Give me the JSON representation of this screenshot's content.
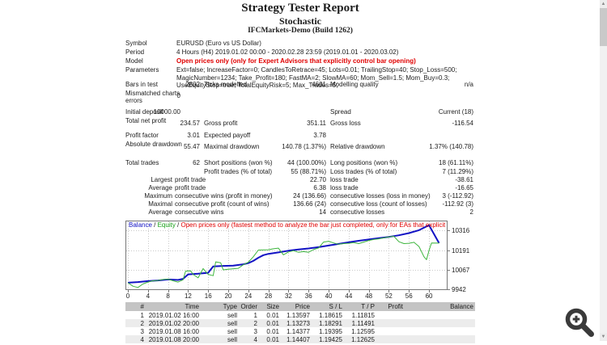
{
  "report": {
    "title": "Strategy Tester Report",
    "subtitle": "Stochastic",
    "server": "IFCMarkets-Demo (Build 1262)"
  },
  "summary": {
    "rows": [
      {
        "type": "wide",
        "label": "Symbol",
        "value": "EURUSD (Euro vs US Dollar)"
      },
      {
        "type": "wide",
        "label": "Period",
        "value": "4 Hours (H4) 2019.01.02 00:00 - 2020.02.28 23:59 (2019.01.01 - 2020.03.02)"
      },
      {
        "type": "wide",
        "label": "Model",
        "value": "Open prices only (only for Expert Advisors that explicitly control bar opening)",
        "emphasis": "red"
      },
      {
        "type": "wide",
        "label": "Parameters",
        "value": "Ext=false; IncreaseFactor=0; CandlesToRetrace=45; Lots=0.01; TrailingStop=40; Stop_Loss=500; MagicNumber=1234; Take_Profit=180; FastMA=2; SlowMA=60; Mom_Sell=1.5; Mom_Buy=0.3; UseEquityStop=true; TotalEquityRisk=5; Max_Trades=5;",
        "tall": true
      },
      {
        "type": "cols",
        "l1": "Bars in test",
        "v1": "2802",
        "l2": "Ticks modelled",
        "v2": "4601",
        "l3": "Modelling quality",
        "v3": "n/a"
      },
      {
        "type": "cols",
        "l1": "Mismatched charts errors",
        "v1s": "0",
        "tall": true
      },
      {
        "type": "cols",
        "gap": true,
        "l1": "Initial deposit",
        "v1s": "10000.00",
        "l3": "Spread",
        "v3": "Current (18)"
      },
      {
        "type": "cols",
        "l1": "Total net profit",
        "v1": "234.57",
        "l2": "Gross profit",
        "v2": "351.11",
        "l3": "Gross loss",
        "v3": "-116.54",
        "tall": true
      },
      {
        "type": "cols",
        "l1": "Profit factor",
        "v1": "3.01",
        "l2": "Expected payoff",
        "v2": "3.78"
      },
      {
        "type": "cols",
        "l1": "Absolute drawdown",
        "v1": "55.47",
        "l2": "Maximal drawdown",
        "v2": "140.78 (1.37%)",
        "l3": "Relative drawdown",
        "v3": "1.37% (140.78)",
        "tall": true
      },
      {
        "type": "cols",
        "gap": true,
        "l1": "Total trades",
        "v1": "62",
        "l2": "Short positions (won %)",
        "v2": "44 (100.00%)",
        "l3": "Long positions (won %)",
        "v3": "18 (61.11%)"
      },
      {
        "type": "cols",
        "l2": "Profit trades (% of total)",
        "v2": "55 (88.71%)",
        "l3": "Loss trades (% of total)",
        "v3": "7 (11.29%)"
      },
      {
        "type": "indent",
        "a": "Largest",
        "b": "profit trade",
        "v2": "22.70",
        "l3": "loss trade",
        "v3": "-38.61"
      },
      {
        "type": "indent",
        "a": "Average",
        "b": "profit trade",
        "v2": "6.38",
        "l3": "loss trade",
        "v3": "-16.65"
      },
      {
        "type": "indent",
        "a": "Maximum",
        "b": "consecutive wins (profit in money)",
        "v2": "24 (136.66)",
        "l3": "consecutive losses (loss in money)",
        "v3": "3 (-112.92)"
      },
      {
        "type": "indent",
        "a": "Maximal",
        "b": "consecutive profit (count of wins)",
        "v2": "136.66 (24)",
        "l3": "consecutive loss (count of losses)",
        "v3": "-112.92 (3)"
      },
      {
        "type": "indent",
        "a": "Average",
        "b": "consecutive wins",
        "v2": "14",
        "l3": "consecutive losses",
        "v3": "2"
      }
    ]
  },
  "chart_data": {
    "type": "line",
    "title": "",
    "legend": [
      {
        "label": "Balance",
        "color": "#1212c4"
      },
      {
        "label": "Equity",
        "color": "#17a017"
      },
      {
        "label": "Open prices only (fastest method to analyze the bar just completed, only for EAs that explicitly control bar opening)",
        "color": "#e00000"
      }
    ],
    "legend_separator": " / ",
    "x_ticks": [
      0,
      4,
      8,
      12,
      16,
      20,
      24,
      28,
      32,
      36,
      40,
      44,
      48,
      52,
      56,
      60
    ],
    "y_ticks": [
      10316,
      10191,
      10067,
      9942
    ],
    "x_max": 63.7,
    "y_top": 10376,
    "y_bottom": 9942,
    "grid": true,
    "series": [
      {
        "name": "Balance",
        "color": "#1212c4",
        "width": 2,
        "points": [
          [
            0,
            9988
          ],
          [
            2,
            9992
          ],
          [
            4,
            9998
          ],
          [
            6,
            10002
          ],
          [
            8,
            10008
          ],
          [
            10,
            10005
          ],
          [
            11,
            10012
          ],
          [
            12,
            10040
          ],
          [
            14,
            10044
          ],
          [
            16,
            10050
          ],
          [
            17,
            10090
          ],
          [
            19,
            10093
          ],
          [
            21,
            10095
          ],
          [
            23,
            10103
          ],
          [
            24,
            10110
          ],
          [
            25,
            10124
          ],
          [
            26,
            10144
          ],
          [
            27,
            10160
          ],
          [
            28,
            10168
          ],
          [
            30,
            10177
          ],
          [
            32,
            10188
          ],
          [
            34,
            10196
          ],
          [
            36,
            10202
          ],
          [
            38,
            10210
          ],
          [
            40,
            10220
          ],
          [
            42,
            10230
          ],
          [
            44,
            10240
          ],
          [
            46,
            10250
          ],
          [
            48,
            10258
          ],
          [
            50,
            10266
          ],
          [
            52,
            10274
          ],
          [
            54,
            10284
          ],
          [
            56,
            10298
          ],
          [
            58,
            10316
          ],
          [
            60,
            10347
          ],
          [
            62,
            10235
          ]
        ]
      },
      {
        "name": "Equity",
        "color": "#3db53d",
        "width": 1,
        "points": [
          [
            0,
            9988
          ],
          [
            1,
            9966
          ],
          [
            2,
            9958
          ],
          [
            3,
            9980
          ],
          [
            4,
            9992
          ],
          [
            5,
            10000
          ],
          [
            6,
            10002
          ],
          [
            7,
            10008
          ],
          [
            8,
            10010
          ],
          [
            9,
            10000
          ],
          [
            10,
            9992
          ],
          [
            11,
            10006
          ],
          [
            11.5,
            10060
          ],
          [
            12.5,
            10062
          ],
          [
            13,
            10040
          ],
          [
            14,
            10018
          ],
          [
            15,
            10076
          ],
          [
            16,
            10040
          ],
          [
            17,
            10032
          ],
          [
            17.5,
            10118
          ],
          [
            18.5,
            10112
          ],
          [
            19,
            10068
          ],
          [
            20,
            10072
          ],
          [
            22,
            10078
          ],
          [
            23,
            10100
          ],
          [
            24,
            10116
          ],
          [
            25,
            10150
          ],
          [
            26,
            10192
          ],
          [
            28,
            10194
          ],
          [
            29,
            10200
          ],
          [
            30,
            10204
          ],
          [
            31,
            10162
          ],
          [
            32,
            10180
          ],
          [
            33,
            10188
          ],
          [
            34,
            10178
          ],
          [
            35,
            10182
          ],
          [
            36,
            10178
          ],
          [
            37,
            10195
          ],
          [
            38,
            10205
          ],
          [
            39,
            10242
          ],
          [
            40,
            10247
          ],
          [
            41,
            10236
          ],
          [
            42,
            10228
          ],
          [
            43,
            10232
          ],
          [
            44,
            10234
          ],
          [
            45,
            10238
          ],
          [
            46,
            10232
          ],
          [
            47,
            10242
          ],
          [
            48,
            10252
          ],
          [
            49,
            10258
          ],
          [
            50,
            10262
          ],
          [
            51,
            10268
          ],
          [
            52,
            10274
          ],
          [
            53,
            10278
          ],
          [
            54,
            10244
          ],
          [
            55,
            10232
          ],
          [
            56,
            10234
          ],
          [
            57,
            10240
          ],
          [
            58,
            10214
          ],
          [
            59,
            10150
          ],
          [
            59.5,
            10132
          ],
          [
            60,
            10190
          ],
          [
            60.5,
            10236
          ],
          [
            62,
            10235
          ]
        ]
      }
    ]
  },
  "trades": {
    "headers": [
      "#",
      "Time",
      "Type",
      "Order",
      "Size",
      "Price",
      "S / L",
      "T / P",
      "Profit",
      "Balance"
    ],
    "rows": [
      [
        "1",
        "2019.01.02 16:00",
        "sell",
        "1",
        "0.01",
        "1.13597",
        "1.18615",
        "1.11815",
        "",
        ""
      ],
      [
        "2",
        "2019.01.02 20:00",
        "sell",
        "2",
        "0.01",
        "1.13273",
        "1.18291",
        "1.11491",
        "",
        ""
      ],
      [
        "3",
        "2019.01.08 16:00",
        "sell",
        "3",
        "0.01",
        "1.14377",
        "1.19395",
        "1.12595",
        "",
        ""
      ],
      [
        "4",
        "2019.01.08 20:00",
        "sell",
        "4",
        "0.01",
        "1.14407",
        "1.19425",
        "1.12625",
        "",
        ""
      ]
    ]
  },
  "scrollbar": {
    "up_arrow": "▲",
    "down_arrow": "▼"
  }
}
